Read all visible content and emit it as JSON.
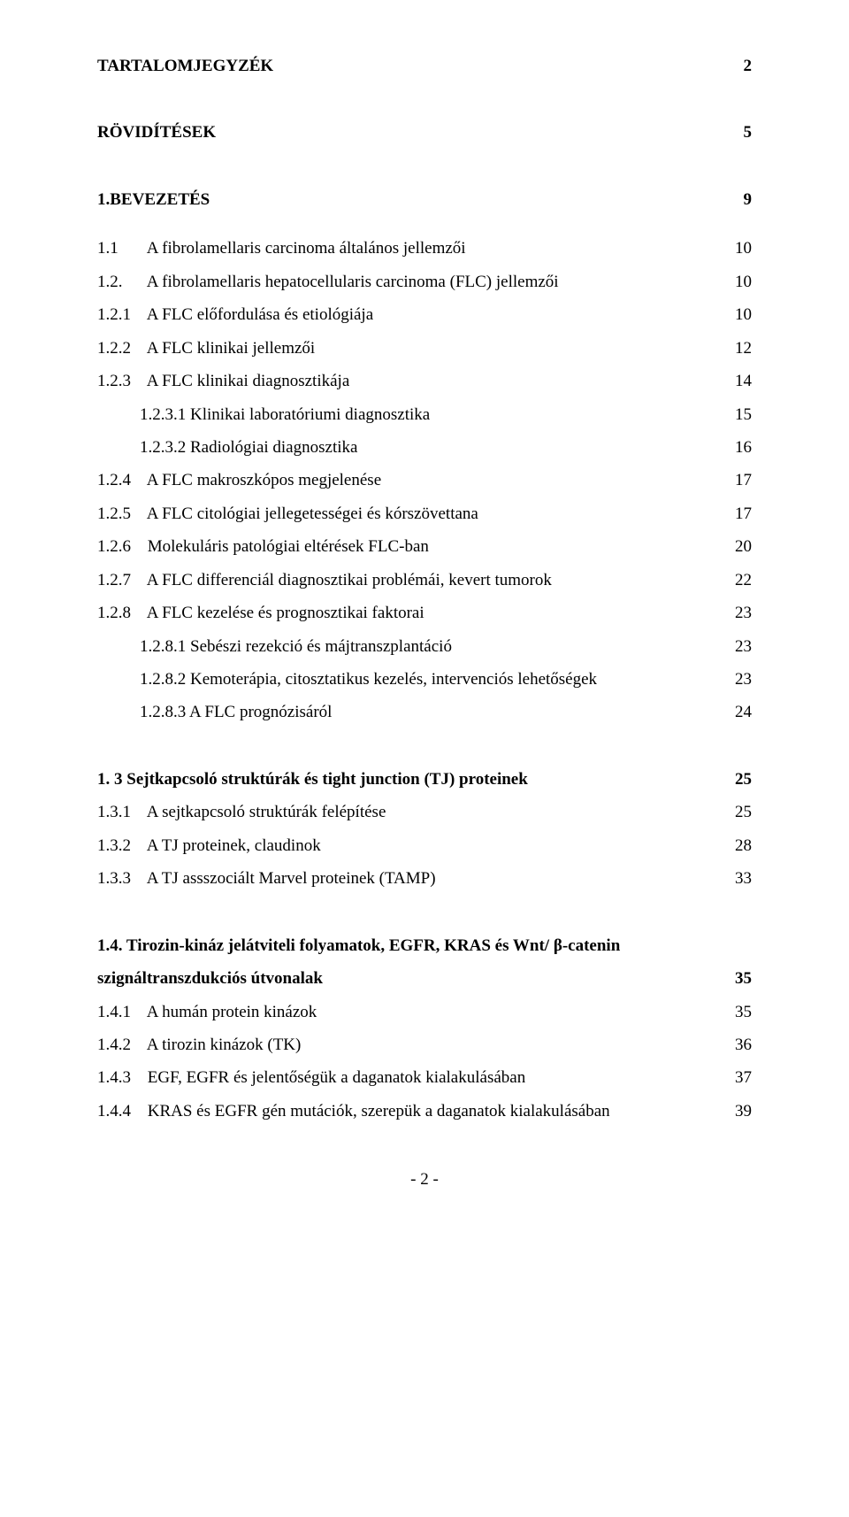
{
  "toc": [
    {
      "kind": "row",
      "bold": true,
      "indent": 0,
      "num": "",
      "label": "TARTALOMJEGYZÉK",
      "page": "2"
    },
    {
      "kind": "gap",
      "size": "md"
    },
    {
      "kind": "row",
      "bold": true,
      "indent": 0,
      "num": "",
      "label": "RÖVIDÍTÉSEK",
      "page": "5"
    },
    {
      "kind": "gap",
      "size": "md"
    },
    {
      "kind": "row",
      "bold": true,
      "indent": 0,
      "num": "",
      "label": "1.BEVEZETÉS",
      "page": "9"
    },
    {
      "kind": "gap",
      "size": "sm"
    },
    {
      "kind": "row",
      "bold": false,
      "indent": 1,
      "num": "1.1",
      "label": "A fibrolamellaris carcinoma általános jellemzői",
      "page": "10"
    },
    {
      "kind": "row",
      "bold": false,
      "indent": 1,
      "num": "1.2.",
      "label": "A fibrolamellaris hepatocellularis carcinoma (FLC) jellemzői",
      "page": "10"
    },
    {
      "kind": "row",
      "bold": false,
      "indent": 1,
      "num": "1.2.1",
      "label": "A FLC előfordulása és etiológiája",
      "page": "10"
    },
    {
      "kind": "row",
      "bold": false,
      "indent": 1,
      "num": "1.2.2",
      "label": "A FLC klinikai jellemzői",
      "page": "12"
    },
    {
      "kind": "row",
      "bold": false,
      "indent": 1,
      "num": "1.2.3",
      "label": "A FLC klinikai diagnosztikája",
      "page": "14"
    },
    {
      "kind": "row",
      "bold": false,
      "indent": 2,
      "num": "",
      "label": "1.2.3.1 Klinikai laboratóriumi diagnosztika",
      "page": "15"
    },
    {
      "kind": "row",
      "bold": false,
      "indent": 2,
      "num": "",
      "label": "1.2.3.2 Radiológiai diagnosztika",
      "page": "16"
    },
    {
      "kind": "row",
      "bold": false,
      "indent": 1,
      "num": "1.2.4",
      "label": "A FLC makroszkópos megjelenése",
      "page": "17"
    },
    {
      "kind": "row",
      "bold": false,
      "indent": 1,
      "num": "1.2.5",
      "label": "A FLC citológiai jellegetességei és kórszövettana",
      "page": "17"
    },
    {
      "kind": "row",
      "bold": false,
      "indent": 1,
      "num": "1.2.6",
      "label": "Molekuláris patológiai eltérések FLC-ban",
      "page": "20"
    },
    {
      "kind": "row",
      "bold": false,
      "indent": 1,
      "num": "1.2.7",
      "label": "A FLC differenciál diagnosztikai problémái, kevert tumorok",
      "page": "22"
    },
    {
      "kind": "row",
      "bold": false,
      "indent": 1,
      "num": "1.2.8",
      "label": "A FLC kezelése és prognosztikai faktorai",
      "page": "23"
    },
    {
      "kind": "row",
      "bold": false,
      "indent": 2,
      "num": "",
      "label": "1.2.8.1 Sebészi rezekció és májtranszplantáció",
      "page": "23"
    },
    {
      "kind": "row",
      "bold": false,
      "indent": 2,
      "num": "",
      "label": "1.2.8.2 Kemoterápia, citosztatikus kezelés, intervenciós lehetőségek",
      "page": "23"
    },
    {
      "kind": "row",
      "bold": false,
      "indent": 2,
      "num": "",
      "label": "1.2.8.3 A FLC prognózisáról",
      "page": "24"
    },
    {
      "kind": "gap",
      "size": "md"
    },
    {
      "kind": "row",
      "bold": true,
      "indent": 0,
      "num": "",
      "label": "1. 3 Sejtkapcsoló struktúrák és tight junction (TJ) proteinek",
      "page": "25"
    },
    {
      "kind": "row",
      "bold": false,
      "indent": 1,
      "num": "1.3.1",
      "label": "A sejtkapcsoló struktúrák felépítése",
      "page": "25"
    },
    {
      "kind": "row",
      "bold": false,
      "indent": 1,
      "num": "1.3.2",
      "label": "A TJ proteinek, claudinok",
      "page": "28"
    },
    {
      "kind": "row",
      "bold": false,
      "indent": 1,
      "num": "1.3.3",
      "label": "A TJ assszociált Marvel proteinek (TAMP)",
      "page": "33"
    },
    {
      "kind": "gap",
      "size": "md"
    },
    {
      "kind": "row2",
      "bold": true,
      "indent": 0,
      "line1": "1.4. Tirozin-kináz jelátviteli folyamatok, EGFR, KRAS és Wnt/ β-catenin",
      "line2": "szignáltranszdukciós útvonalak",
      "page": "35"
    },
    {
      "kind": "row",
      "bold": false,
      "indent": 1,
      "num": "1.4.1",
      "label": "A humán protein kinázok",
      "page": "35"
    },
    {
      "kind": "row",
      "bold": false,
      "indent": 1,
      "num": "1.4.2",
      "label": "A tirozin kinázok (TK)",
      "page": "36"
    },
    {
      "kind": "row",
      "bold": false,
      "indent": 1,
      "num": "1.4.3",
      "label": "EGF, EGFR és jelentőségük a daganatok kialakulásában",
      "page": "37"
    },
    {
      "kind": "row",
      "bold": false,
      "indent": 1,
      "num": "1.4.4",
      "label": "KRAS és EGFR gén mutációk, szerepük a daganatok kialakulásában",
      "page": "39"
    }
  ],
  "footer": "- 2 -"
}
